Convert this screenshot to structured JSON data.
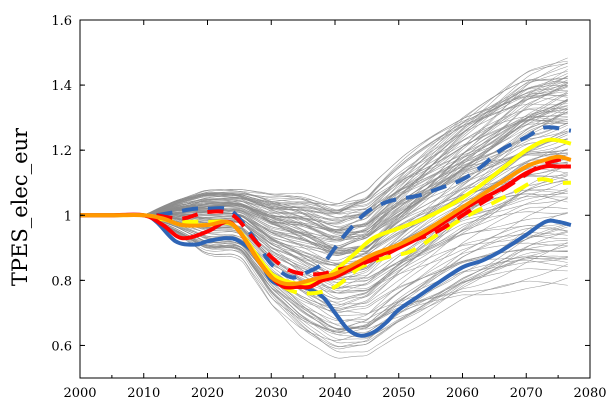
{
  "chart_data": {
    "type": "line",
    "title": "",
    "xlabel": "",
    "ylabel": "TPES_elec_eur",
    "xlim": [
      2000,
      2080
    ],
    "ylim": [
      0.5,
      1.6
    ],
    "xticks": [
      2000,
      2010,
      2020,
      2030,
      2040,
      2050,
      2060,
      2070,
      2080
    ],
    "yticks": [
      0.6,
      0.8,
      1.0,
      1.2,
      1.4,
      1.6
    ],
    "xtick_labels": [
      "2000",
      "2010",
      "2020",
      "2030",
      "2040",
      "2050",
      "2060",
      "2070",
      "2080"
    ],
    "ytick_labels": [
      "0.6",
      "0.8",
      "1",
      "1.2",
      "1.4",
      "1.6"
    ],
    "grid": false,
    "legend": "none",
    "ensemble": {
      "color": "#8c8c8c",
      "count": 140,
      "envelope_high": [
        [
          2000,
          1.0
        ],
        [
          2010,
          1.0
        ],
        [
          2015,
          1.05
        ],
        [
          2020,
          1.09
        ],
        [
          2025,
          1.09
        ],
        [
          2030,
          1.08
        ],
        [
          2035,
          1.08
        ],
        [
          2040,
          1.05
        ],
        [
          2045,
          1.08
        ],
        [
          2050,
          1.17
        ],
        [
          2060,
          1.33
        ],
        [
          2070,
          1.47
        ],
        [
          2077,
          1.51
        ]
      ],
      "envelope_low": [
        [
          2000,
          1.0
        ],
        [
          2010,
          1.0
        ],
        [
          2015,
          0.94
        ],
        [
          2020,
          0.87
        ],
        [
          2025,
          0.87
        ],
        [
          2030,
          0.72
        ],
        [
          2035,
          0.62
        ],
        [
          2040,
          0.56
        ],
        [
          2045,
          0.57
        ],
        [
          2050,
          0.63
        ],
        [
          2060,
          0.72
        ],
        [
          2070,
          0.77
        ],
        [
          2077,
          0.78
        ]
      ]
    },
    "series": [
      {
        "color": "#2f65b5",
        "style": "solid",
        "x": [
          2000,
          2005,
          2010,
          2012,
          2015,
          2018,
          2020,
          2023,
          2025,
          2028,
          2030,
          2033,
          2035,
          2038,
          2040,
          2042,
          2044,
          2046,
          2048,
          2050,
          2053,
          2056,
          2060,
          2063,
          2066,
          2070,
          2073,
          2075,
          2077
        ],
        "values": [
          1.0,
          1.0,
          1.0,
          0.98,
          0.92,
          0.91,
          0.92,
          0.93,
          0.92,
          0.87,
          0.8,
          0.78,
          0.78,
          0.75,
          0.7,
          0.65,
          0.63,
          0.64,
          0.67,
          0.71,
          0.75,
          0.79,
          0.84,
          0.86,
          0.89,
          0.94,
          0.98,
          0.98,
          0.97
        ]
      },
      {
        "color": "#2f65b5",
        "style": "dashed",
        "x": [
          2012,
          2015,
          2018,
          2020,
          2023,
          2025,
          2028,
          2030,
          2033,
          2035,
          2038,
          2040,
          2042,
          2045,
          2048,
          2050,
          2053,
          2056,
          2060,
          2063,
          2066,
          2070,
          2073,
          2077
        ],
        "values": [
          1.0,
          1.01,
          1.02,
          1.02,
          1.02,
          0.99,
          0.91,
          0.85,
          0.81,
          0.82,
          0.85,
          0.9,
          0.95,
          1.01,
          1.04,
          1.05,
          1.06,
          1.08,
          1.11,
          1.15,
          1.2,
          1.24,
          1.27,
          1.26
        ]
      },
      {
        "color": "#ffff00",
        "style": "solid",
        "x": [
          2000,
          2005,
          2010,
          2013,
          2016,
          2020,
          2024,
          2028,
          2030,
          2032,
          2034,
          2036,
          2038,
          2040,
          2043,
          2046,
          2050,
          2054,
          2058,
          2062,
          2066,
          2070,
          2073,
          2075,
          2077
        ],
        "values": [
          1.0,
          1.0,
          1.0,
          0.99,
          0.97,
          0.97,
          0.97,
          0.87,
          0.82,
          0.8,
          0.79,
          0.79,
          0.8,
          0.83,
          0.88,
          0.93,
          0.96,
          0.99,
          1.03,
          1.08,
          1.14,
          1.2,
          1.23,
          1.23,
          1.22
        ]
      },
      {
        "color": "#ffff00",
        "style": "dashed",
        "x": [
          2012,
          2016,
          2020,
          2024,
          2028,
          2032,
          2036,
          2040,
          2044,
          2048,
          2052,
          2056,
          2060,
          2064,
          2068,
          2072,
          2075,
          2077
        ],
        "values": [
          0.99,
          0.98,
          0.98,
          0.97,
          0.87,
          0.78,
          0.76,
          0.78,
          0.84,
          0.87,
          0.89,
          0.94,
          0.99,
          1.03,
          1.07,
          1.11,
          1.1,
          1.1
        ]
      },
      {
        "color": "#ff0000",
        "style": "solid",
        "x": [
          2000,
          2005,
          2010,
          2013,
          2016,
          2020,
          2023,
          2025,
          2028,
          2030,
          2032,
          2034,
          2036,
          2038,
          2040,
          2043,
          2046,
          2050,
          2054,
          2058,
          2062,
          2066,
          2070,
          2073,
          2075,
          2077
        ],
        "values": [
          1.0,
          1.0,
          1.0,
          0.97,
          0.93,
          0.95,
          0.98,
          0.95,
          0.86,
          0.81,
          0.78,
          0.78,
          0.78,
          0.8,
          0.81,
          0.84,
          0.87,
          0.9,
          0.94,
          0.99,
          1.04,
          1.08,
          1.13,
          1.15,
          1.15,
          1.15
        ]
      },
      {
        "color": "#ff0000",
        "style": "dashed",
        "x": [
          2012,
          2016,
          2020,
          2024,
          2028,
          2032,
          2035,
          2038,
          2040,
          2044,
          2048,
          2052,
          2056,
          2060,
          2064,
          2068,
          2072,
          2075,
          2077
        ],
        "values": [
          1.0,
          0.99,
          1.01,
          1.0,
          0.91,
          0.84,
          0.82,
          0.82,
          0.83,
          0.85,
          0.88,
          0.92,
          0.95,
          1.0,
          1.05,
          1.1,
          1.15,
          1.17,
          1.17
        ]
      },
      {
        "color": "#ff9900",
        "style": "solid",
        "x": [
          2000,
          2005,
          2010,
          2013,
          2016,
          2020,
          2023,
          2025,
          2028,
          2030,
          2032,
          2034,
          2036,
          2038,
          2040,
          2043,
          2046,
          2050,
          2054,
          2058,
          2062,
          2066,
          2070,
          2073,
          2075,
          2077
        ],
        "values": [
          1.0,
          1.0,
          1.0,
          0.99,
          0.97,
          0.97,
          0.98,
          0.95,
          0.86,
          0.81,
          0.79,
          0.79,
          0.8,
          0.81,
          0.82,
          0.85,
          0.88,
          0.91,
          0.95,
          1.0,
          1.05,
          1.1,
          1.15,
          1.17,
          1.18,
          1.17
        ]
      }
    ]
  }
}
